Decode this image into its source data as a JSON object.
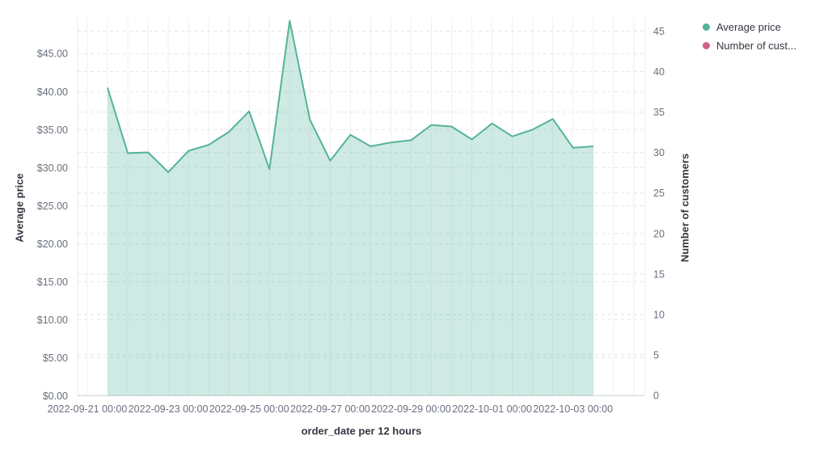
{
  "chart_data": {
    "type": "area",
    "title": "",
    "x_axis": {
      "title": "order_date per 12 hours",
      "tick_labels": [
        "2022-09-21 00:00",
        "2022-09-23 00:00",
        "2022-09-25 00:00",
        "2022-09-27 00:00",
        "2022-09-29 00:00",
        "2022-10-01 00:00",
        "2022-10-03 00:00"
      ],
      "interval": "12 hours"
    },
    "left_axis": {
      "title": "Average price",
      "tick_labels": [
        "$0.00",
        "$5.00",
        "$10.00",
        "$15.00",
        "$20.00",
        "$25.00",
        "$30.00",
        "$35.00",
        "$40.00",
        "$45.00"
      ],
      "range": [
        0,
        49.7
      ],
      "grid": "dashed"
    },
    "right_axis": {
      "title": "Number of customers",
      "tick_labels": [
        "0",
        "5",
        "10",
        "15",
        "20",
        "25",
        "30",
        "35",
        "40",
        "45"
      ],
      "range": [
        0,
        46.6
      ],
      "grid": "dashed"
    },
    "legend": [
      {
        "label": "Average price",
        "color": "#54B399"
      },
      {
        "label": "Number of cust...",
        "full_label": "Number of customers",
        "color": "#D36086"
      }
    ],
    "series": [
      {
        "name": "Average price",
        "axis": "left",
        "color": "#54B399",
        "fill_opacity": 0.28,
        "x": [
          "2022-09-21 12:00",
          "2022-09-22 00:00",
          "2022-09-22 12:00",
          "2022-09-23 00:00",
          "2022-09-23 12:00",
          "2022-09-24 00:00",
          "2022-09-24 12:00",
          "2022-09-25 00:00",
          "2022-09-25 12:00",
          "2022-09-26 00:00",
          "2022-09-26 12:00",
          "2022-09-27 00:00",
          "2022-09-27 12:00",
          "2022-09-28 00:00",
          "2022-09-28 12:00",
          "2022-09-29 00:00",
          "2022-09-29 12:00",
          "2022-09-30 00:00",
          "2022-09-30 12:00",
          "2022-10-01 00:00",
          "2022-10-01 12:00",
          "2022-10-02 00:00",
          "2022-10-02 12:00",
          "2022-10-03 00:00",
          "2022-10-03 12:00"
        ],
        "values": [
          40.5,
          31.9,
          32.0,
          29.4,
          32.2,
          33.0,
          34.7,
          37.4,
          29.8,
          49.3,
          36.3,
          30.9,
          34.3,
          32.8,
          33.3,
          33.6,
          35.6,
          35.4,
          33.7,
          35.8,
          34.1,
          35.0,
          36.4,
          32.6,
          32.8
        ]
      },
      {
        "name": "Number of customers",
        "axis": "right",
        "color": "#D36086",
        "values": [],
        "visible_in_plot": false
      }
    ],
    "grid": {
      "horizontal": "dashed",
      "vertical": "solid"
    }
  },
  "colors": {
    "background": "#ffffff",
    "series_green": "#54B399",
    "series_pink": "#D36086",
    "grid_dashed": "#e2e5e9",
    "grid_vertical": "#edf0f4",
    "axis_line": "#d3d7de",
    "tick_label": "#69707D",
    "axis_title": "#343741"
  }
}
